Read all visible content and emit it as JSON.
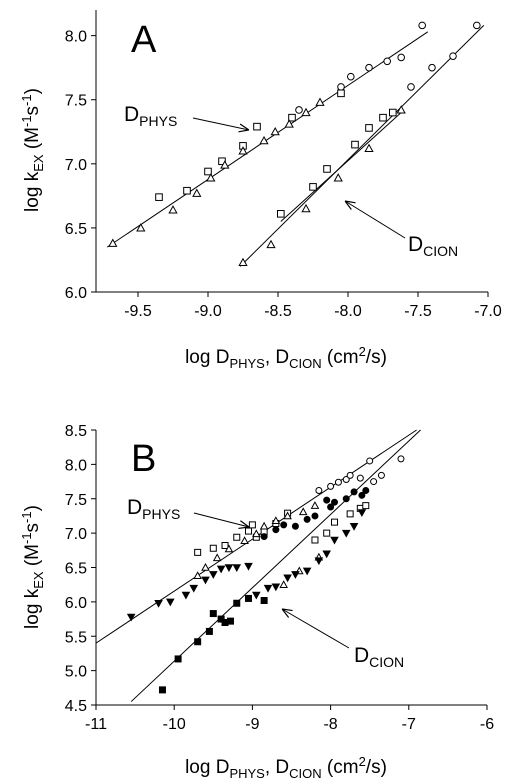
{
  "chart_data": [
    {
      "type": "scatter",
      "panel_label": "A",
      "xlim": [
        -9.8,
        -7.0
      ],
      "ylim": [
        6.0,
        8.2
      ],
      "xticks": [
        "-9.5",
        "-9.0",
        "-8.5",
        "-8.0",
        "-7.5",
        "-7.0"
      ],
      "yticks": [
        "6.0",
        "6.5",
        "7.0",
        "7.5",
        "8.0"
      ],
      "xlabel": {
        "main": "log D",
        "sub1": "PHYS",
        "mid": ", D",
        "sub2": "CION",
        "tail": " (cm",
        "sup": "2",
        "end": "/s)"
      },
      "ylabel": {
        "main": "log k",
        "sub": "EX",
        "mid": " (M",
        "sup1": "-1",
        "mid2": "s",
        "sup2": "-1",
        "end": ")"
      },
      "annotations": [
        {
          "main": "D",
          "sub": "PHYS"
        },
        {
          "main": "D",
          "sub": "CION"
        }
      ],
      "series": [
        {
          "marker": "open-circle",
          "x": [
            -8.35,
            -8.05,
            -7.98,
            -7.85,
            -7.72,
            -7.62,
            -7.47
          ],
          "y": [
            7.42,
            7.6,
            7.68,
            7.75,
            7.8,
            7.83,
            8.08
          ]
        },
        {
          "marker": "open-square",
          "x": [
            -9.35,
            -9.15,
            -9.0,
            -8.9,
            -8.75,
            -8.65,
            -8.4,
            -8.05
          ],
          "y": [
            6.74,
            6.79,
            6.94,
            7.02,
            7.14,
            7.29,
            7.36,
            7.55
          ]
        },
        {
          "marker": "open-triangle",
          "x": [
            -9.68,
            -9.48,
            -9.25,
            -9.08,
            -8.98,
            -8.88,
            -8.75,
            -8.6,
            -8.52,
            -8.42,
            -8.3,
            -8.2
          ],
          "y": [
            6.38,
            6.5,
            6.64,
            6.77,
            6.89,
            6.99,
            7.1,
            7.18,
            7.25,
            7.31,
            7.4,
            7.48
          ]
        },
        {
          "marker": "open-circle",
          "x": [
            -7.55,
            -7.4,
            -7.25,
            -7.08
          ],
          "y": [
            7.6,
            7.75,
            7.84,
            8.08
          ]
        },
        {
          "marker": "open-square",
          "x": [
            -8.48,
            -8.25,
            -8.15,
            -7.95,
            -7.85,
            -7.75,
            -7.68
          ],
          "y": [
            6.61,
            6.82,
            6.96,
            7.15,
            7.28,
            7.36,
            7.4
          ]
        },
        {
          "marker": "open-triangle",
          "x": [
            -8.75,
            -8.55,
            -8.3,
            -8.07,
            -7.85,
            -7.62
          ],
          "y": [
            6.23,
            6.37,
            6.65,
            6.89,
            7.12,
            7.42
          ]
        }
      ],
      "fit_lines": [
        {
          "x": [
            -9.72,
            -7.43
          ],
          "y": [
            6.35,
            8.03
          ]
        },
        {
          "x": [
            -8.77,
            -7.03
          ],
          "y": [
            6.2,
            8.08
          ]
        },
        {
          "x": [
            -8.48,
            -7.62
          ],
          "y": [
            6.55,
            7.4
          ]
        }
      ]
    },
    {
      "type": "scatter",
      "panel_label": "B",
      "xlim": [
        -11,
        -6
      ],
      "ylim": [
        4.5,
        8.5
      ],
      "xticks": [
        "-11",
        "-10",
        "-9",
        "-8",
        "-7",
        "-6"
      ],
      "yticks": [
        "4.5",
        "5.0",
        "5.5",
        "6.0",
        "6.5",
        "7.0",
        "7.5",
        "8.0",
        "8.5"
      ],
      "xlabel": {
        "main": "log D",
        "sub1": "PHYS",
        "mid": ", D",
        "sub2": "CION",
        "tail": " (cm",
        "sup": "2",
        "end": "/s)"
      },
      "ylabel": {
        "main": "log k",
        "sub": "EX",
        "mid": " (M",
        "sup1": "-1",
        "mid2": "s",
        "sup2": "-1",
        "end": ")"
      },
      "annotations": [
        {
          "main": "D",
          "sub": "PHYS"
        },
        {
          "main": "D",
          "sub": "CION"
        }
      ],
      "series": [
        {
          "marker": "open-circle",
          "x": [
            -8.15,
            -8.0,
            -7.9,
            -7.8,
            -7.75,
            -7.62,
            -7.5,
            -7.45,
            -7.35,
            -7.1
          ],
          "y": [
            7.62,
            7.68,
            7.74,
            7.78,
            7.84,
            7.8,
            8.05,
            7.75,
            7.84,
            8.08
          ]
        },
        {
          "marker": "open-square",
          "x": [
            -9.7,
            -9.5,
            -9.35,
            -9.2,
            -9.05,
            -9.0,
            -8.95,
            -8.85,
            -8.7,
            -8.55,
            -8.2,
            -8.05,
            -7.95,
            -7.75,
            -7.62,
            -7.55
          ],
          "y": [
            6.72,
            6.78,
            6.82,
            6.94,
            7.03,
            7.12,
            6.94,
            7.02,
            7.14,
            7.29,
            6.9,
            7.0,
            7.16,
            7.28,
            7.36,
            7.4
          ]
        },
        {
          "marker": "open-triangle",
          "x": [
            -9.7,
            -9.6,
            -9.45,
            -9.3,
            -9.1,
            -8.95,
            -8.85,
            -8.7,
            -8.55,
            -8.35,
            -8.2,
            -8.6,
            -8.4,
            -8.15
          ],
          "y": [
            6.38,
            6.5,
            6.64,
            6.77,
            6.89,
            6.99,
            7.1,
            7.18,
            7.25,
            7.31,
            7.4,
            6.25,
            6.45,
            6.65
          ]
        },
        {
          "marker": "filled-circle",
          "x": [
            -8.85,
            -8.7,
            -8.6,
            -8.45,
            -8.3,
            -8.2,
            -8.05,
            -8.0,
            -7.95,
            -7.8,
            -7.7,
            -7.6,
            -7.55
          ],
          "y": [
            6.95,
            7.05,
            7.12,
            7.1,
            7.2,
            7.25,
            7.48,
            7.38,
            7.45,
            7.5,
            7.6,
            7.55,
            7.62
          ]
        },
        {
          "marker": "filled-triangle-down",
          "x": [
            -10.55,
            -10.2,
            -10.05,
            -9.85,
            -9.75,
            -9.6,
            -9.5,
            -9.4,
            -9.3,
            -9.2,
            -9.05,
            -8.95,
            -8.8,
            -8.7,
            -8.55,
            -8.45,
            -8.3,
            -8.15,
            -8.05,
            -7.95,
            -7.8,
            -7.7,
            -7.6
          ],
          "y": [
            5.78,
            5.98,
            6.0,
            6.1,
            6.2,
            6.32,
            6.4,
            6.48,
            6.5,
            6.5,
            6.52,
            6.1,
            6.2,
            6.22,
            6.35,
            6.4,
            6.45,
            6.6,
            6.7,
            6.9,
            7.0,
            7.1,
            7.3
          ]
        },
        {
          "marker": "filled-square",
          "x": [
            -10.15,
            -9.95,
            -9.7,
            -9.55,
            -9.5,
            -9.4,
            -9.35,
            -9.28,
            -9.2,
            -9.05,
            -8.85
          ],
          "y": [
            4.72,
            5.17,
            5.42,
            5.57,
            5.83,
            5.75,
            5.7,
            5.72,
            5.98,
            6.05,
            6.02
          ]
        }
      ],
      "fit_lines": [
        {
          "x": [
            -11.0,
            -6.9
          ],
          "y": [
            5.4,
            8.5
          ]
        },
        {
          "x": [
            -10.55,
            -6.85
          ],
          "y": [
            4.55,
            8.5
          ]
        }
      ]
    }
  ]
}
